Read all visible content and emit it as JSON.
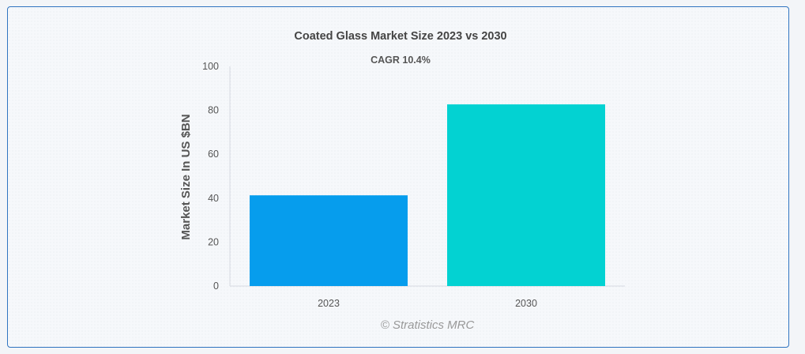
{
  "chart_data": {
    "type": "bar",
    "title": "Coated Glass Market Size 2023 vs 2030",
    "subtitle": "CAGR 10.4%",
    "categories": [
      "2023",
      "2030"
    ],
    "values": [
      41.3,
      82.7
    ],
    "colors": [
      "#069ded",
      "#03d2d2"
    ],
    "xlabel": "",
    "ylabel": "Market Size In US $BN",
    "ylim": [
      0,
      100
    ],
    "yticks": [
      0,
      20,
      40,
      60,
      80,
      100
    ],
    "grid": false,
    "legend": "none"
  },
  "credit": "© Stratistics MRC"
}
